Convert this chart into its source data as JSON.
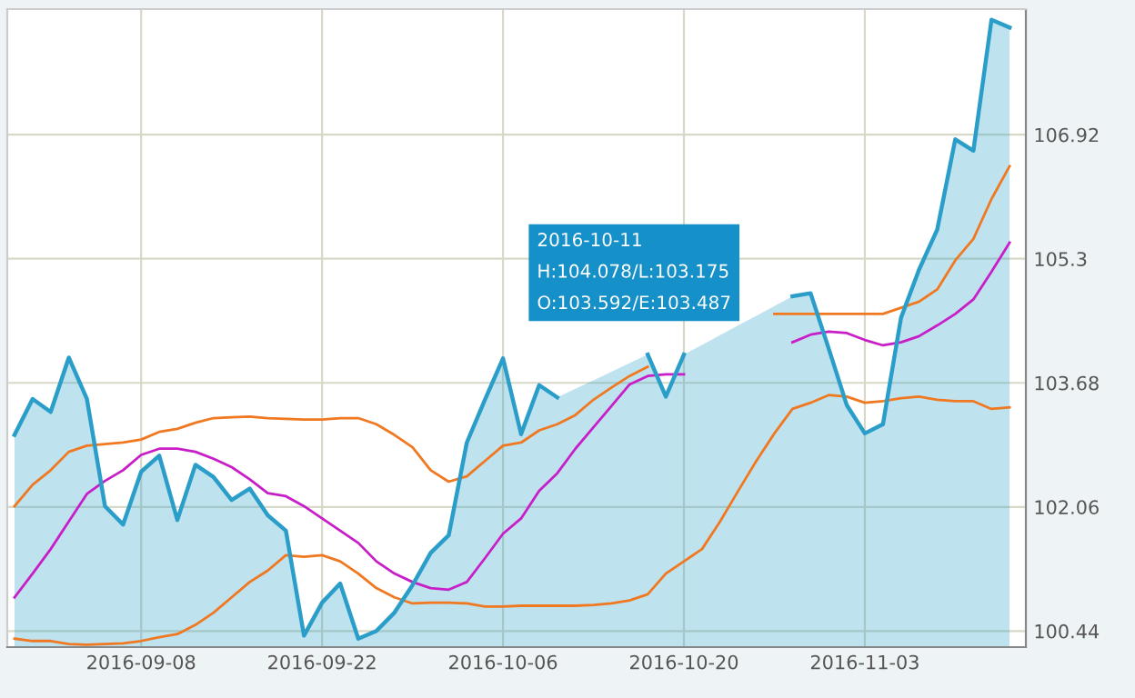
{
  "chart_data": {
    "type": "line",
    "categories": [
      null,
      null,
      null,
      null,
      null,
      null,
      null,
      "2016-09-08",
      null,
      null,
      null,
      null,
      null,
      null,
      null,
      null,
      null,
      "2016-09-22",
      null,
      null,
      null,
      null,
      null,
      null,
      null,
      null,
      null,
      "2016-10-06",
      null,
      null,
      null,
      null,
      null,
      null,
      null,
      null,
      null,
      "2016-10-20",
      null,
      null,
      null,
      null,
      null,
      null,
      null,
      null,
      null,
      "2016-11-03",
      null,
      null,
      null,
      null,
      null,
      null,
      null,
      null
    ],
    "series": [
      {
        "type": "area",
        "color": "#2a9ec9",
        "values": [
          103.0,
          103.47,
          103.3,
          104.01,
          103.47,
          102.07,
          101.83,
          102.52,
          102.73,
          101.89,
          102.61,
          102.45,
          102.15,
          102.3,
          101.95,
          101.75,
          100.38,
          100.81,
          101.06,
          100.34,
          100.44,
          100.68,
          101.04,
          101.46,
          101.69,
          102.9,
          103.46,
          104.0,
          103.01,
          103.65,
          103.49,
          null,
          null,
          null,
          null,
          104.05,
          103.5,
          104.05,
          null,
          null,
          null,
          null,
          null,
          104.81,
          104.85,
          104.13,
          103.39,
          103.02,
          103.14,
          104.53,
          105.16,
          105.68,
          106.86,
          106.71,
          108.42,
          108.32
        ]
      },
      {
        "color": "#f07820",
        "values": [
          102.07,
          102.35,
          102.54,
          102.78,
          102.86,
          102.88,
          102.9,
          102.94,
          103.04,
          103.08,
          103.16,
          103.22,
          103.23,
          103.24,
          103.22,
          103.21,
          103.2,
          103.2,
          103.22,
          103.22,
          103.14,
          103.0,
          102.84,
          102.54,
          102.39,
          102.46,
          102.66,
          102.86,
          102.9,
          103.06,
          103.14,
          103.26,
          103.46,
          103.62,
          103.77,
          103.89,
          null,
          null,
          null,
          null,
          null,
          null,
          104.58,
          104.58,
          104.58,
          104.58,
          104.58,
          104.58,
          104.58,
          104.66,
          104.74,
          104.9,
          105.28,
          105.56,
          106.08,
          106.51
        ]
      },
      {
        "color": "#c81ec8",
        "values": [
          100.88,
          101.19,
          101.51,
          101.87,
          102.23,
          102.4,
          102.54,
          102.74,
          102.82,
          102.82,
          102.78,
          102.69,
          102.58,
          102.42,
          102.24,
          102.2,
          102.07,
          101.91,
          101.75,
          101.59,
          101.35,
          101.19,
          101.08,
          101.0,
          100.98,
          101.08,
          101.39,
          101.71,
          101.91,
          102.27,
          102.5,
          102.82,
          103.1,
          103.38,
          103.66,
          103.77,
          103.79,
          103.79,
          null,
          null,
          null,
          null,
          null,
          104.21,
          104.31,
          104.35,
          104.33,
          104.24,
          104.17,
          104.21,
          104.29,
          104.43,
          104.58,
          104.77,
          105.13,
          105.51
        ]
      },
      {
        "color": "#f07820",
        "values": [
          100.34,
          100.31,
          100.31,
          100.27,
          100.26,
          100.27,
          100.28,
          100.31,
          100.36,
          100.4,
          100.52,
          100.68,
          100.88,
          101.08,
          101.23,
          101.43,
          101.41,
          101.43,
          101.35,
          101.19,
          101.0,
          100.88,
          100.8,
          100.81,
          100.81,
          100.8,
          100.76,
          100.76,
          100.77,
          100.77,
          100.77,
          100.77,
          100.78,
          100.8,
          100.84,
          100.92,
          101.19,
          101.35,
          101.51,
          101.87,
          102.27,
          102.66,
          103.02,
          103.34,
          103.42,
          103.52,
          103.5,
          103.42,
          103.44,
          103.48,
          103.5,
          103.46,
          103.44,
          103.44,
          103.34,
          103.36
        ]
      }
    ],
    "ylim": [
      100.23,
      108.56
    ],
    "yticks": [
      100.44,
      102.06,
      103.68,
      105.3,
      106.92
    ],
    "grid": true,
    "annotations": [
      "2016-10-11\nH:104.078/L:103.175\nO:103.592/E:103.487"
    ]
  }
}
